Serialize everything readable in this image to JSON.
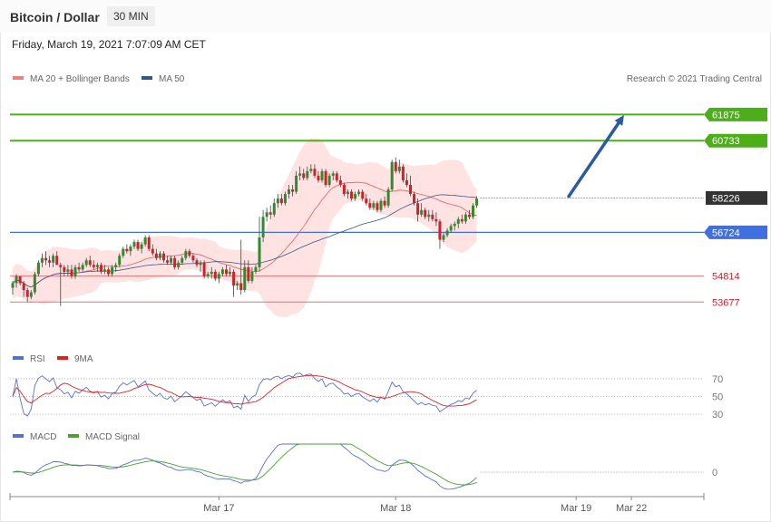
{
  "header": {
    "title": "Bitcoin / Dollar",
    "timeframe": "30 MIN",
    "datetime": "Friday, March 19, 2021 7:07:09 AM CET"
  },
  "copyright": "Research © 2021 Trading Central",
  "colors": {
    "up": "#2e8b2e",
    "down": "#d0202a",
    "bollinger_fill": "#ffdada",
    "ma20": "#e85a5a",
    "ma50": "#34568b",
    "target_green": "#4caf1a",
    "pivot_blue": "#3f6fe0",
    "support_red": "#e57373",
    "price_tag": "#333333",
    "rsi": "#5470d8",
    "rsi_ma": "#e02020",
    "macd": "#5470d8",
    "macd_signal": "#4aa02c",
    "arrow": "#2c5aa0"
  },
  "chart_data": [
    {
      "type": "candlestick",
      "name": "price",
      "legend": [
        {
          "label": "MA 20 + Bollinger Bands",
          "color": "#f08080"
        },
        {
          "label": "MA 50",
          "color": "#34568b"
        }
      ],
      "ylim": [
        52300,
        63000
      ],
      "x_ticks": [
        {
          "label": "Mar 17",
          "index": 56
        },
        {
          "label": "Mar 18",
          "index": 104
        },
        {
          "label": "Mar 19",
          "index": 153
        },
        {
          "label": "Mar 22",
          "index": 168
        }
      ],
      "levels": [
        {
          "value": 61875,
          "label": "61875",
          "role": "target"
        },
        {
          "value": 60733,
          "label": "60733",
          "role": "target"
        },
        {
          "value": 58226,
          "label": "58226",
          "role": "last"
        },
        {
          "value": 56724,
          "label": "56724",
          "role": "pivot"
        },
        {
          "value": 54814,
          "label": "54814",
          "role": "support"
        },
        {
          "value": 53677,
          "label": "53677",
          "role": "support"
        }
      ],
      "forecast_arrow": {
        "from_index": 151,
        "from_value": 58300,
        "to_index": 166,
        "to_value": 61850
      },
      "candles": [
        [
          54300,
          54600,
          54000,
          54500
        ],
        [
          54500,
          54900,
          54300,
          54800
        ],
        [
          54800,
          54800,
          54400,
          54500
        ],
        [
          54500,
          54600,
          53900,
          54200
        ],
        [
          54200,
          54300,
          53700,
          53900
        ],
        [
          53900,
          54200,
          53800,
          54100
        ],
        [
          54100,
          55000,
          54000,
          54900
        ],
        [
          54900,
          55500,
          54800,
          55400
        ],
        [
          55400,
          55800,
          55200,
          55600
        ],
        [
          55600,
          55900,
          55300,
          55500
        ],
        [
          55500,
          55700,
          55200,
          55400
        ],
        [
          55400,
          55800,
          55200,
          55700
        ],
        [
          55700,
          55900,
          55300,
          55300
        ],
        [
          55300,
          55400,
          53500,
          55200
        ],
        [
          55200,
          55300,
          54800,
          55000
        ],
        [
          55000,
          55300,
          54800,
          55100
        ],
        [
          55100,
          55300,
          54700,
          54800
        ],
        [
          54800,
          55300,
          54700,
          55200
        ],
        [
          55200,
          55400,
          55000,
          55100
        ],
        [
          55100,
          55400,
          55000,
          55300
        ],
        [
          55300,
          55600,
          55200,
          55500
        ],
        [
          55500,
          55700,
          55200,
          55300
        ],
        [
          55300,
          55500,
          55100,
          55200
        ],
        [
          55200,
          55400,
          55000,
          55300
        ],
        [
          55300,
          55400,
          54900,
          55000
        ],
        [
          55000,
          55300,
          54900,
          55100
        ],
        [
          55100,
          55200,
          54800,
          54900
        ],
        [
          54900,
          55300,
          54800,
          55200
        ],
        [
          55200,
          55400,
          55000,
          55300
        ],
        [
          55300,
          55800,
          55200,
          55700
        ],
        [
          55700,
          56100,
          55600,
          56000
        ],
        [
          56000,
          56200,
          55800,
          55900
        ],
        [
          55900,
          56200,
          55700,
          56100
        ],
        [
          56100,
          56400,
          56000,
          56300
        ],
        [
          56300,
          56400,
          55900,
          56000
        ],
        [
          56000,
          56300,
          55800,
          56200
        ],
        [
          56200,
          56600,
          56100,
          56500
        ],
        [
          56500,
          56600,
          55900,
          56000
        ],
        [
          56000,
          56200,
          55700,
          55800
        ],
        [
          55800,
          56000,
          55500,
          55600
        ],
        [
          55600,
          55900,
          55500,
          55800
        ],
        [
          55800,
          55900,
          55400,
          55500
        ],
        [
          55500,
          55700,
          55300,
          55400
        ],
        [
          55400,
          55700,
          55300,
          55600
        ],
        [
          55600,
          55700,
          55100,
          55200
        ],
        [
          55200,
          55500,
          55100,
          55400
        ],
        [
          55400,
          55700,
          55300,
          55600
        ],
        [
          55600,
          56000,
          55500,
          55900
        ],
        [
          55900,
          56000,
          55600,
          55700
        ],
        [
          55700,
          55800,
          55400,
          55500
        ],
        [
          55500,
          55600,
          55200,
          55300
        ],
        [
          55300,
          55500,
          55000,
          55400
        ],
        [
          55400,
          55500,
          54700,
          54800
        ],
        [
          54800,
          55000,
          54700,
          54900
        ],
        [
          54900,
          55200,
          54700,
          55000
        ],
        [
          55000,
          55100,
          54600,
          54700
        ],
        [
          54700,
          55000,
          54500,
          54900
        ],
        [
          54900,
          55200,
          54800,
          55100
        ],
        [
          55100,
          55300,
          54800,
          54900
        ],
        [
          54900,
          55200,
          54800,
          55000
        ],
        [
          55000,
          55100,
          53900,
          54400
        ],
        [
          54400,
          54600,
          54200,
          54500
        ],
        [
          54500,
          56400,
          54000,
          54200
        ],
        [
          54200,
          55500,
          54100,
          55200
        ],
        [
          55200,
          55500,
          54500,
          54600
        ],
        [
          54600,
          55200,
          54500,
          55000
        ],
        [
          55000,
          55300,
          54900,
          55200
        ],
        [
          55200,
          57400,
          55000,
          56500
        ],
        [
          56500,
          57700,
          56300,
          57400
        ],
        [
          57400,
          57800,
          57200,
          57600
        ],
        [
          57600,
          57900,
          57300,
          57500
        ],
        [
          57500,
          58200,
          57400,
          58000
        ],
        [
          58000,
          58400,
          57800,
          58200
        ],
        [
          58200,
          58400,
          57900,
          58000
        ],
        [
          58000,
          58500,
          57900,
          58400
        ],
        [
          58400,
          58800,
          58200,
          58600
        ],
        [
          58600,
          58800,
          58300,
          58500
        ],
        [
          58500,
          59400,
          58400,
          59200
        ],
        [
          59200,
          59600,
          59000,
          59300
        ],
        [
          59300,
          59500,
          59000,
          59100
        ],
        [
          59100,
          59600,
          59000,
          59400
        ],
        [
          59400,
          59700,
          59300,
          59500
        ],
        [
          59500,
          59700,
          59100,
          59200
        ],
        [
          59200,
          59400,
          58900,
          59000
        ],
        [
          59000,
          59500,
          58900,
          59400
        ],
        [
          59400,
          59500,
          58700,
          58800
        ],
        [
          58800,
          59300,
          58700,
          59200
        ],
        [
          59200,
          59400,
          59000,
          59300
        ],
        [
          59300,
          59400,
          58900,
          59000
        ],
        [
          59000,
          59200,
          58700,
          58800
        ],
        [
          58800,
          58900,
          58300,
          58400
        ],
        [
          58400,
          58600,
          58200,
          58500
        ],
        [
          58500,
          58600,
          58100,
          58200
        ],
        [
          58200,
          58500,
          58100,
          58400
        ],
        [
          58400,
          58600,
          58300,
          58500
        ],
        [
          58500,
          58600,
          58100,
          58200
        ],
        [
          58200,
          58400,
          57900,
          58000
        ],
        [
          58000,
          58200,
          57700,
          57800
        ],
        [
          57800,
          58100,
          57700,
          58000
        ],
        [
          58000,
          58100,
          57600,
          57700
        ],
        [
          57700,
          58200,
          57600,
          58100
        ],
        [
          58100,
          58300,
          57800,
          57900
        ],
        [
          57900,
          58700,
          57800,
          58600
        ],
        [
          58600,
          59900,
          58500,
          59800
        ],
        [
          59800,
          60000,
          59300,
          59400
        ],
        [
          59400,
          59900,
          59300,
          59600
        ],
        [
          59600,
          59700,
          58900,
          59000
        ],
        [
          59000,
          59300,
          58700,
          58800
        ],
        [
          58800,
          59200,
          58300,
          58400
        ],
        [
          58400,
          58500,
          57900,
          58000
        ],
        [
          58000,
          58200,
          57200,
          57500
        ],
        [
          57500,
          58000,
          57400,
          57700
        ],
        [
          57700,
          57800,
          57300,
          57400
        ],
        [
          57400,
          57700,
          57200,
          57500
        ],
        [
          57500,
          57700,
          57200,
          57300
        ],
        [
          57300,
          57600,
          57000,
          57200
        ],
        [
          57200,
          57300,
          56000,
          56400
        ],
        [
          56400,
          56700,
          56300,
          56600
        ],
        [
          56600,
          56900,
          56500,
          56800
        ],
        [
          56800,
          57100,
          56700,
          57000
        ],
        [
          57000,
          57200,
          56800,
          57100
        ],
        [
          57100,
          57400,
          56900,
          57300
        ],
        [
          57300,
          57500,
          57100,
          57200
        ],
        [
          57200,
          57600,
          57100,
          57500
        ],
        [
          57500,
          57700,
          57300,
          57400
        ],
        [
          57400,
          58000,
          57300,
          57900
        ],
        [
          57900,
          58300,
          57800,
          58200
        ]
      ]
    },
    {
      "type": "line",
      "name": "rsi",
      "legend": [
        {
          "label": "RSI",
          "color": "#5470d8"
        },
        {
          "label": "9MA",
          "color": "#e02020"
        }
      ],
      "levels": [
        {
          "value": 70,
          "label": "70"
        },
        {
          "value": 50,
          "label": "50"
        },
        {
          "value": 30,
          "label": "30"
        }
      ],
      "ylim": [
        25,
        80
      ]
    },
    {
      "type": "line",
      "name": "macd",
      "legend": [
        {
          "label": "MACD",
          "color": "#5470d8"
        },
        {
          "label": "MACD Signal",
          "color": "#4aa02c"
        }
      ],
      "levels": [
        {
          "value": 0,
          "label": "0"
        }
      ]
    }
  ]
}
